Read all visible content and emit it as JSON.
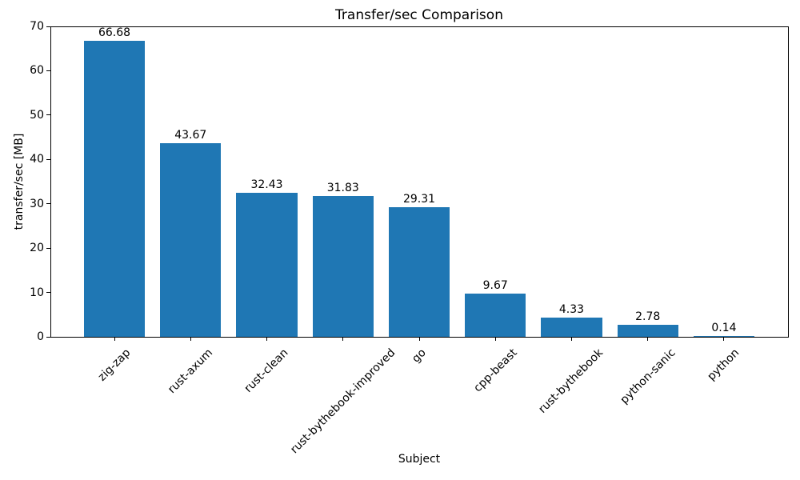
{
  "chart_data": {
    "type": "bar",
    "title": "Transfer/sec Comparison",
    "xlabel": "Subject",
    "ylabel": "transfer/sec [MB]",
    "categories": [
      "zig-zap",
      "rust-axum",
      "rust-clean",
      "rust-bythebook-improved",
      "go",
      "cpp-beast",
      "rust-bythebook",
      "python-sanic",
      "python"
    ],
    "values": [
      66.68,
      43.67,
      32.43,
      31.83,
      29.31,
      9.67,
      4.33,
      2.78,
      0.14
    ],
    "value_labels": [
      "66.68",
      "43.67",
      "32.43",
      "31.83",
      "29.31",
      "9.67",
      "4.33",
      "2.78",
      "0.14"
    ],
    "ylim": [
      0,
      70
    ],
    "yticks": [
      0,
      10,
      20,
      30,
      40,
      50,
      60,
      70
    ],
    "x_tick_rotation_deg": 45,
    "bar_color": "#1f77b4",
    "axis_color": "#000000",
    "text_color": "#000000",
    "background_color": "#ffffff",
    "grid": false,
    "legend": "none"
  }
}
